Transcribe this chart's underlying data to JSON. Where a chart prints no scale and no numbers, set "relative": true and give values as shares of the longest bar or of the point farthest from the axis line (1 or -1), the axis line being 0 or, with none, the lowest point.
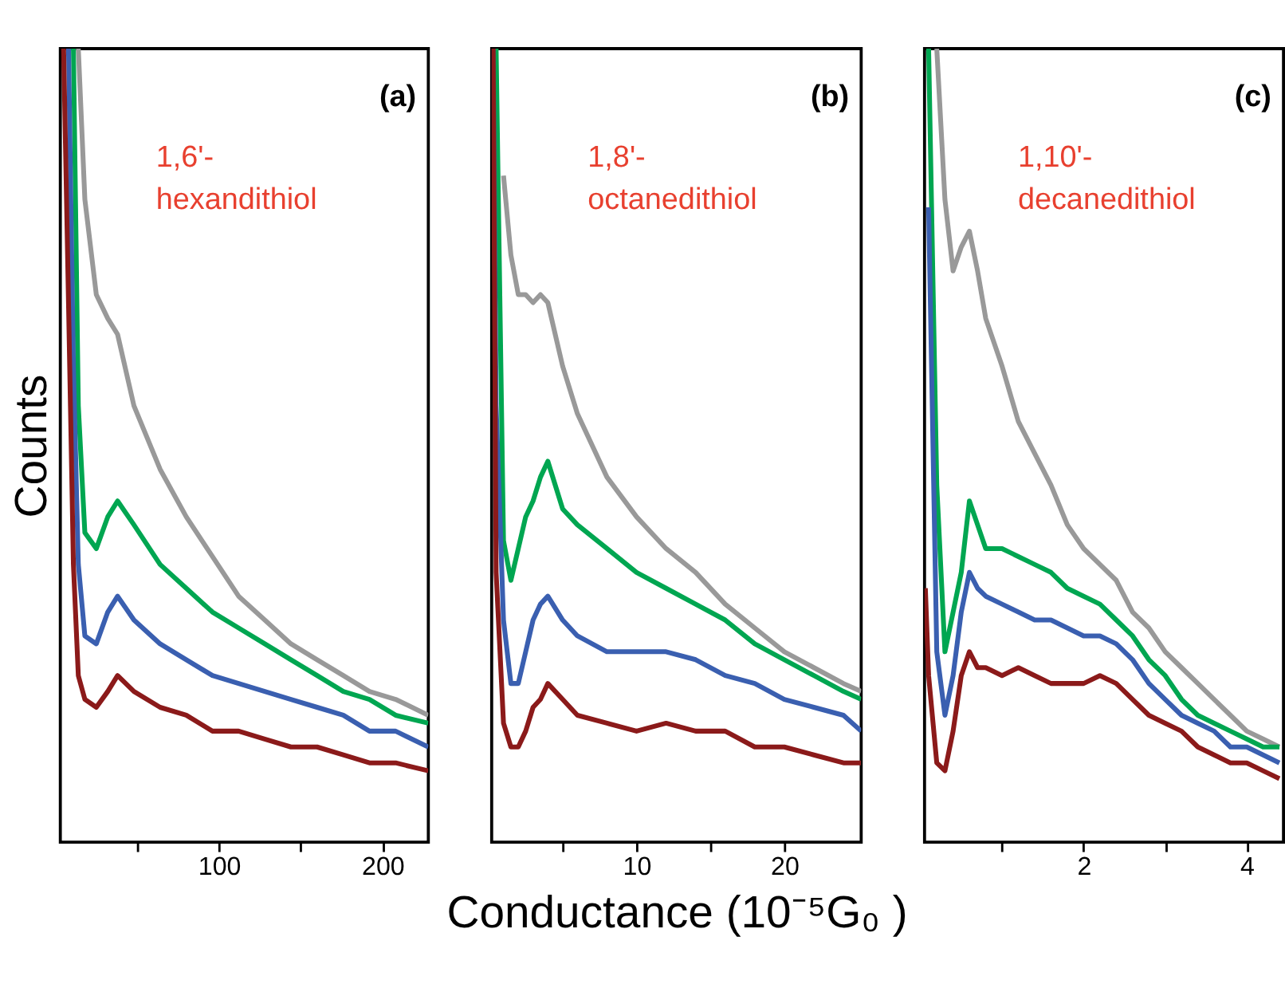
{
  "chart_data": [
    {
      "type": "line",
      "relative": true,
      "ylabel": "Counts",
      "tick_labels": "x",
      "grid": false,
      "xlim": [
        3,
        228
      ],
      "xticks": [
        {
          "value": 50,
          "label": null
        },
        100,
        {
          "value": 150,
          "label": null
        },
        200
      ],
      "annotations": [
        "(a)",
        "1,6'-\nhexandithiol"
      ],
      "x": [
        5,
        8,
        11,
        14,
        18,
        25,
        32,
        38,
        48,
        64,
        80,
        96,
        112,
        128,
        144,
        160,
        176,
        192,
        208,
        228
      ],
      "series": [
        {
          "color": "#999999",
          "values": [
            null,
            null,
            null,
            1,
            0.81,
            0.69,
            0.66,
            0.64,
            0.55,
            0.47,
            0.41,
            0.36,
            0.31,
            0.28,
            0.25,
            0.23,
            0.21,
            0.19,
            0.18,
            0.16
          ]
        },
        {
          "color": "#00a651",
          "values": [
            null,
            null,
            1,
            0.55,
            0.39,
            0.37,
            0.41,
            0.43,
            0.4,
            0.35,
            0.32,
            0.29,
            0.27,
            0.25,
            0.23,
            0.21,
            0.19,
            0.18,
            0.16,
            0.15
          ]
        },
        {
          "color": "#3a5fb0",
          "values": [
            null,
            1,
            0.6,
            0.35,
            0.26,
            0.25,
            0.29,
            0.31,
            0.28,
            0.25,
            0.23,
            0.21,
            0.2,
            0.19,
            0.18,
            0.17,
            0.16,
            0.14,
            0.14,
            0.12
          ]
        },
        {
          "color": "#8b1a1a",
          "values": [
            1,
            0.68,
            0.35,
            0.21,
            0.18,
            0.17,
            0.19,
            0.21,
            0.19,
            0.17,
            0.16,
            0.14,
            0.14,
            0.13,
            0.12,
            0.12,
            0.11,
            0.1,
            0.1,
            0.09
          ]
        }
      ]
    },
    {
      "type": "line",
      "relative": true,
      "xlabel": "Conductance (10⁻⁵G₀ )",
      "tick_labels": "x",
      "grid": false,
      "xlim": [
        0.2,
        25.2
      ],
      "xticks": [
        {
          "value": 5,
          "label": null
        },
        10,
        {
          "value": 15,
          "label": null
        },
        20
      ],
      "annotations": [
        "(b)",
        "1,8'-\noctanedithiol"
      ],
      "x": [
        0.3,
        0.5,
        1,
        1.5,
        2,
        2.5,
        3,
        3.5,
        4,
        5,
        6,
        8,
        10,
        12,
        14,
        16,
        18,
        20,
        22,
        24,
        25.2
      ],
      "series": [
        {
          "color": "#999999",
          "values": [
            null,
            null,
            0.84,
            0.74,
            0.69,
            0.69,
            0.68,
            0.69,
            0.68,
            0.6,
            0.54,
            0.46,
            0.41,
            0.37,
            0.34,
            0.3,
            0.27,
            0.24,
            0.22,
            0.2,
            0.19
          ]
        },
        {
          "color": "#00a651",
          "values": [
            null,
            1,
            0.38,
            0.33,
            0.37,
            0.41,
            0.43,
            0.46,
            0.48,
            0.42,
            0.4,
            0.37,
            0.34,
            0.32,
            0.3,
            0.28,
            0.25,
            0.23,
            0.21,
            0.19,
            0.18
          ]
        },
        {
          "color": "#3a5fb0",
          "values": [
            1,
            0.55,
            0.28,
            0.2,
            0.2,
            0.24,
            0.28,
            0.3,
            0.31,
            0.28,
            0.26,
            0.24,
            0.24,
            0.24,
            0.23,
            0.21,
            0.2,
            0.18,
            0.17,
            0.16,
            0.14
          ]
        },
        {
          "color": "#8b1a1a",
          "values": [
            1,
            0.34,
            0.15,
            0.12,
            0.12,
            0.14,
            0.17,
            0.18,
            0.2,
            0.18,
            0.16,
            0.15,
            0.14,
            0.15,
            0.14,
            0.14,
            0.12,
            0.12,
            0.11,
            0.1,
            0.1
          ]
        }
      ]
    },
    {
      "type": "line",
      "relative": true,
      "tick_labels": "x",
      "grid": false,
      "xlim": [
        0.05,
        4.45
      ],
      "xticks": [
        {
          "value": 1,
          "label": null
        },
        2,
        {
          "value": 3,
          "label": null
        },
        4
      ],
      "annotations": [
        "(c)",
        "1,10'-\ndecanedithiol"
      ],
      "x": [
        0.06,
        0.1,
        0.2,
        0.3,
        0.4,
        0.5,
        0.6,
        0.7,
        0.8,
        1.0,
        1.2,
        1.4,
        1.6,
        1.8,
        2.0,
        2.2,
        2.4,
        2.6,
        2.8,
        3.0,
        3.2,
        3.4,
        3.6,
        3.8,
        4.0,
        4.2,
        4.4
      ],
      "series": [
        {
          "color": "#999999",
          "values": [
            null,
            null,
            1,
            0.81,
            0.72,
            0.75,
            0.77,
            0.72,
            0.66,
            0.6,
            0.53,
            0.49,
            0.45,
            0.4,
            0.37,
            0.35,
            0.33,
            0.29,
            0.27,
            0.24,
            0.22,
            0.2,
            0.18,
            0.16,
            0.14,
            0.13,
            0.12
          ]
        },
        {
          "color": "#00a651",
          "values": [
            null,
            1,
            0.45,
            0.24,
            0.29,
            0.34,
            0.43,
            0.4,
            0.37,
            0.37,
            0.36,
            0.35,
            0.34,
            0.32,
            0.31,
            0.3,
            0.28,
            0.26,
            0.23,
            0.21,
            0.18,
            0.16,
            0.15,
            0.14,
            0.13,
            0.12,
            0.12
          ]
        },
        {
          "color": "#3a5fb0",
          "values": [
            null,
            0.8,
            0.24,
            0.16,
            0.21,
            0.29,
            0.34,
            0.32,
            0.31,
            0.3,
            0.29,
            0.28,
            0.28,
            0.27,
            0.26,
            0.26,
            0.25,
            0.23,
            0.2,
            0.18,
            0.16,
            0.15,
            0.14,
            0.12,
            0.12,
            0.11,
            0.1
          ]
        },
        {
          "color": "#8b1a1a",
          "values": [
            0.32,
            0.21,
            0.1,
            0.09,
            0.14,
            0.21,
            0.24,
            0.22,
            0.22,
            0.21,
            0.22,
            0.21,
            0.2,
            0.2,
            0.2,
            0.21,
            0.2,
            0.18,
            0.16,
            0.15,
            0.14,
            0.12,
            0.11,
            0.1,
            0.1,
            0.09,
            0.08
          ]
        }
      ]
    }
  ]
}
